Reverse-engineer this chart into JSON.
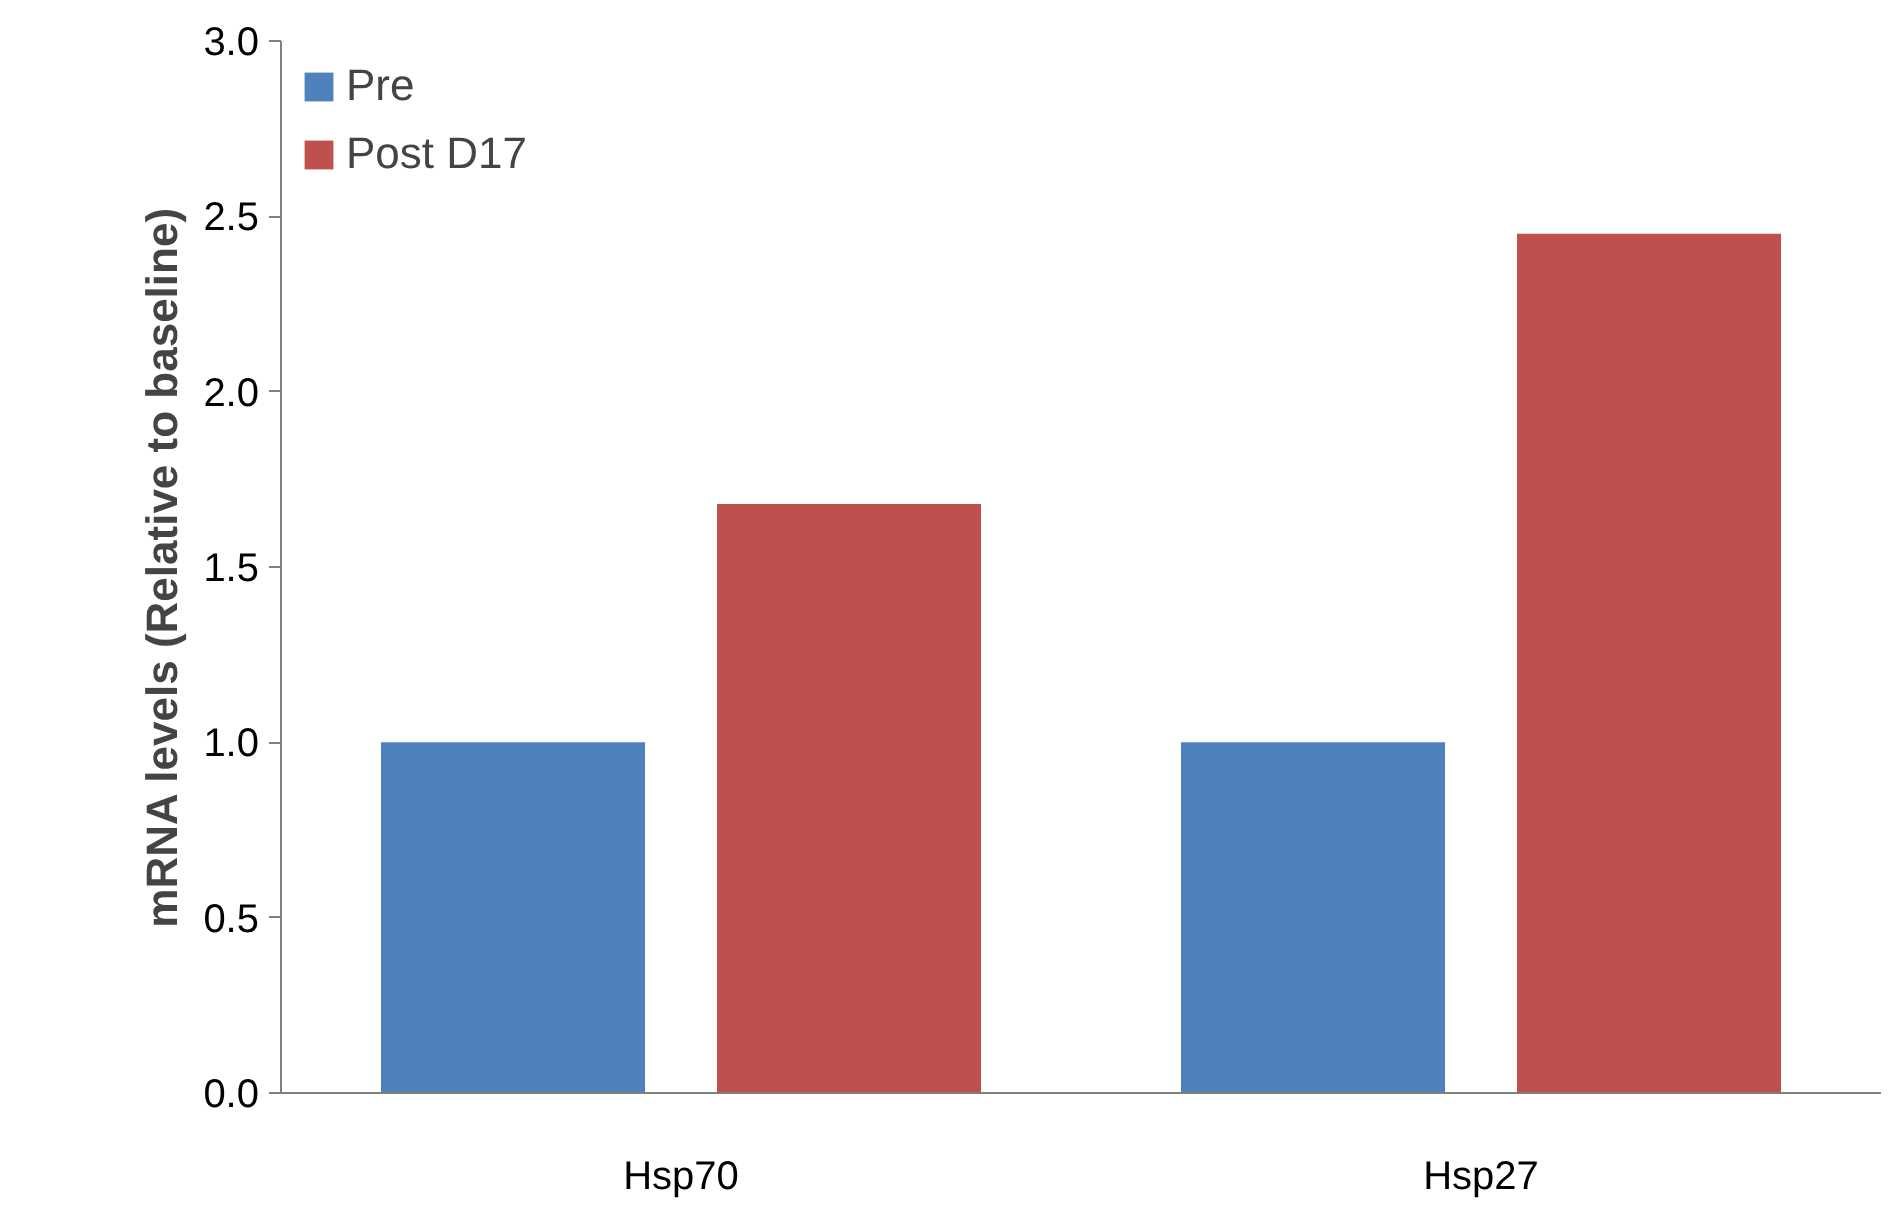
{
  "chart_data": {
    "type": "bar",
    "ylabel": "mRNA levels (Relative to baseline)",
    "categories": [
      "Hsp70",
      "Hsp27"
    ],
    "series": [
      {
        "name": "Pre",
        "color": "#4f81bd",
        "values": [
          1.0,
          1.0
        ]
      },
      {
        "name": "Post D17",
        "color": "#c0504d",
        "values": [
          1.68,
          2.45
        ]
      }
    ],
    "ylim": [
      0,
      3.0
    ],
    "yticks": [
      {
        "value": 0,
        "label": "0.0"
      },
      {
        "value": 0.5,
        "label": "0.5"
      },
      {
        "value": 1.0,
        "label": "1.0"
      },
      {
        "value": 1.5,
        "label": "1.5"
      },
      {
        "value": 2.0,
        "label": "2.0"
      },
      {
        "value": 2.5,
        "label": "2.5"
      },
      {
        "value": 3.0,
        "label": "3.0"
      }
    ],
    "grid": false,
    "legend": "top left"
  }
}
